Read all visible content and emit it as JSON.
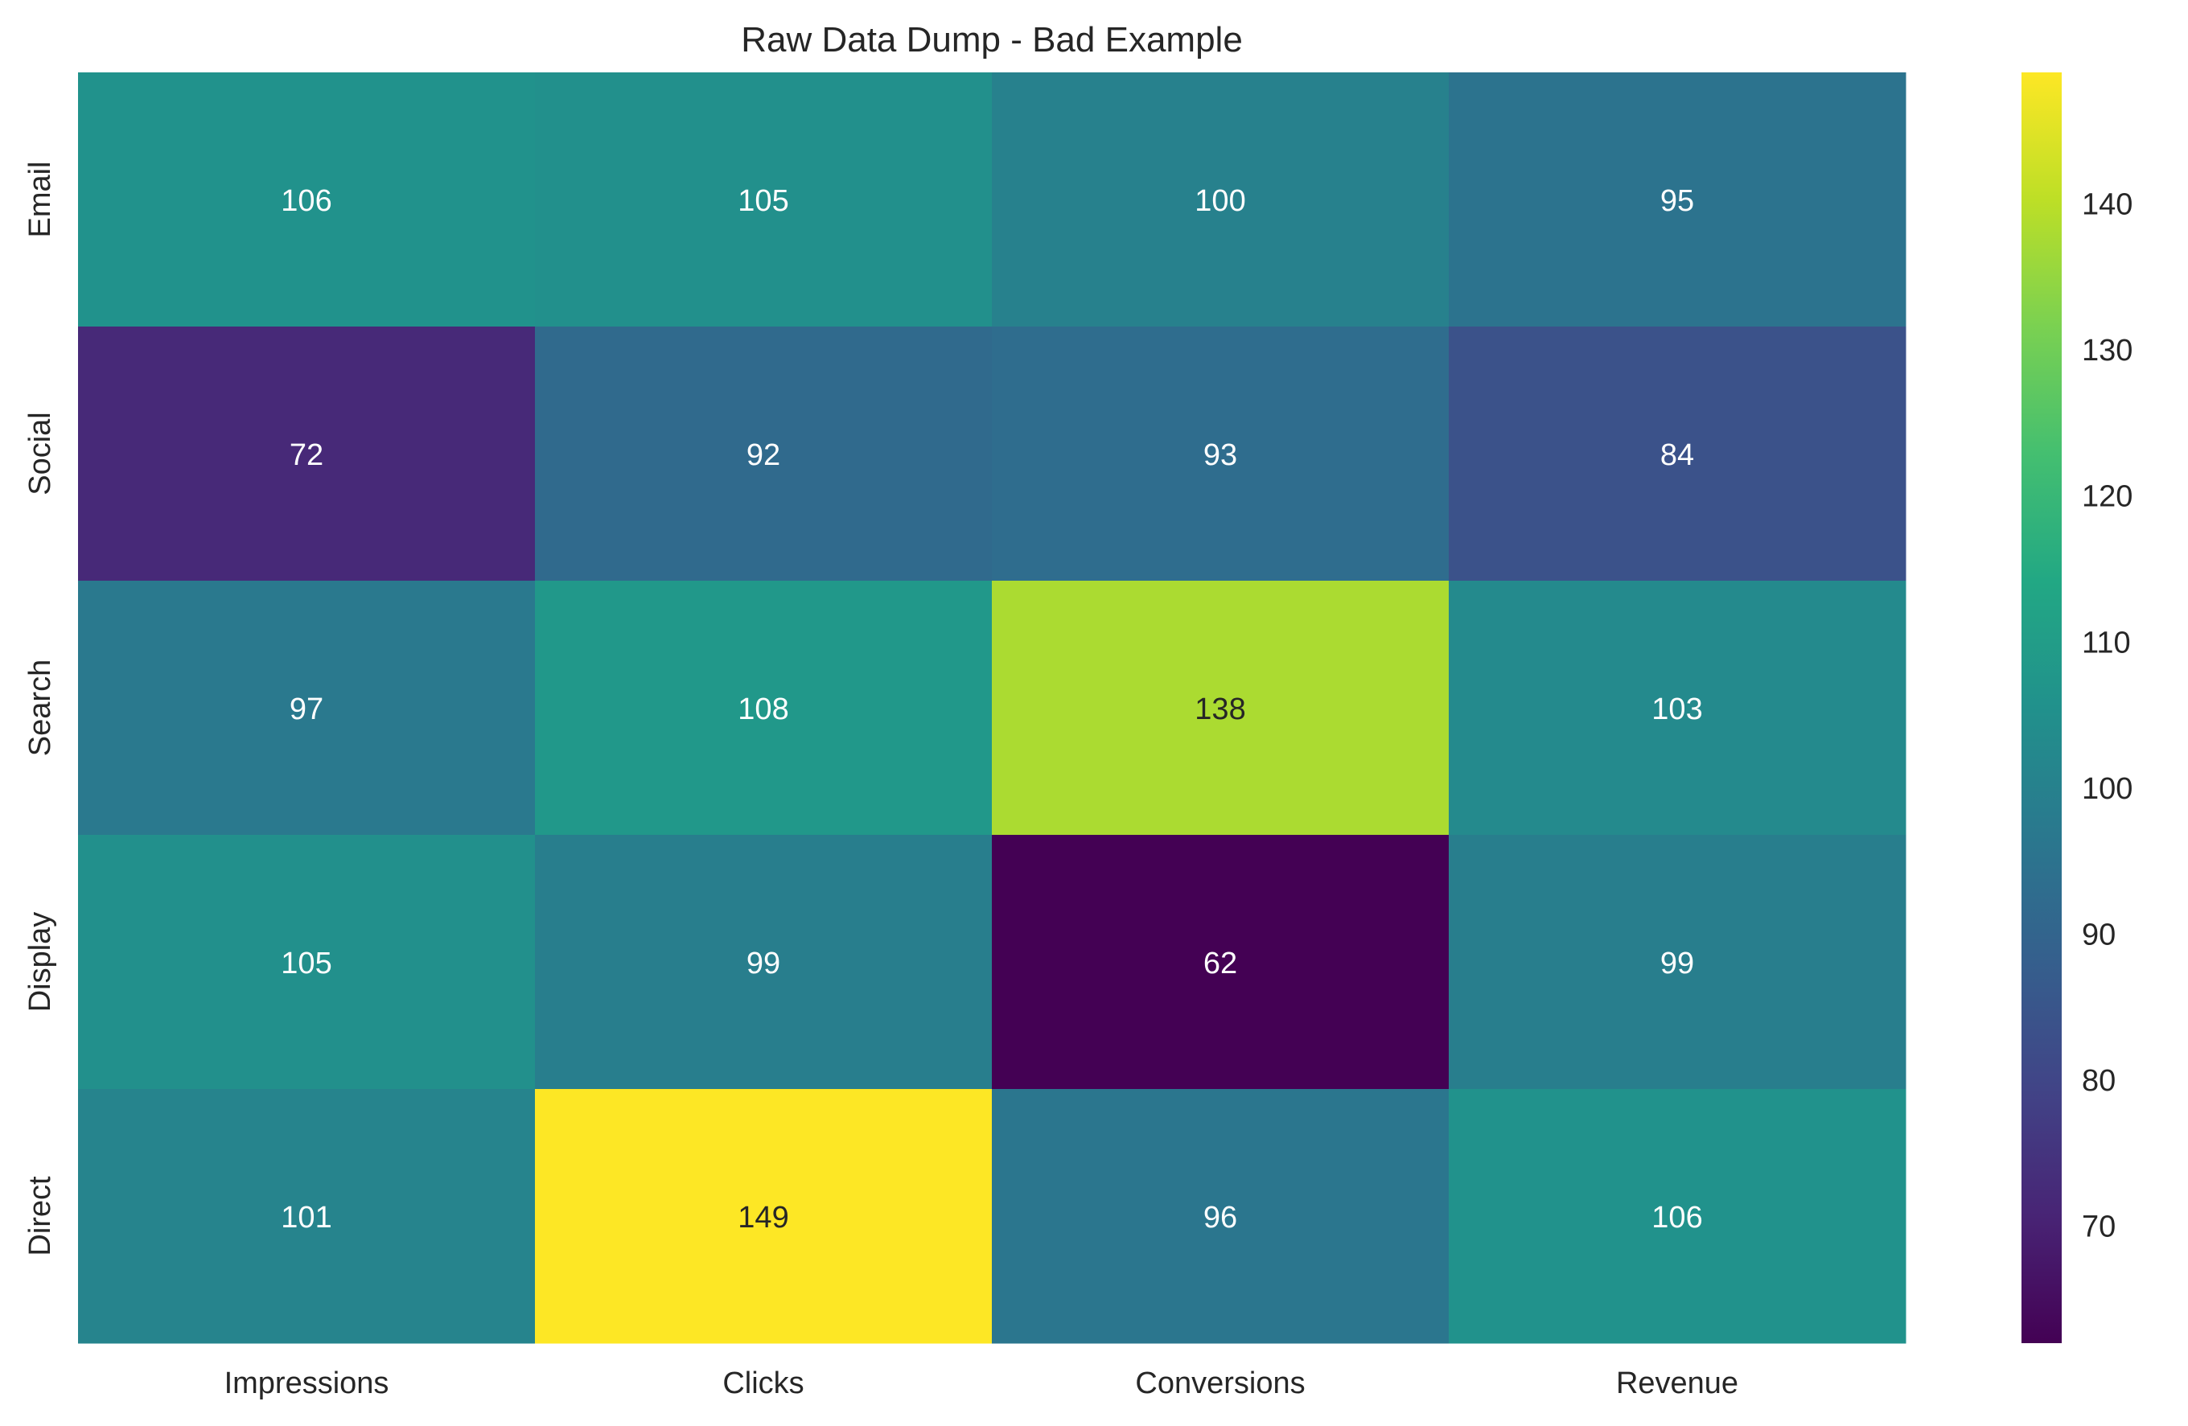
{
  "chart_data": {
    "type": "heatmap",
    "title": "Raw Data Dump - Bad Example",
    "xlabel": "",
    "ylabel": "",
    "columns": [
      "Impressions",
      "Clicks",
      "Conversions",
      "Revenue"
    ],
    "rows": [
      "Email",
      "Social",
      "Search",
      "Display",
      "Direct"
    ],
    "values": [
      [
        106,
        105,
        100,
        95
      ],
      [
        72,
        92,
        93,
        84
      ],
      [
        97,
        108,
        138,
        103
      ],
      [
        105,
        99,
        62,
        99
      ],
      [
        101,
        149,
        96,
        106
      ]
    ],
    "colormap": "viridis",
    "vmin": 62,
    "vmax": 149,
    "colorbar_ticks": [
      70,
      80,
      90,
      100,
      110,
      120,
      130,
      140
    ],
    "annotation_color_light": "#ffffff",
    "annotation_color_dark": "#262626",
    "grid": false
  }
}
